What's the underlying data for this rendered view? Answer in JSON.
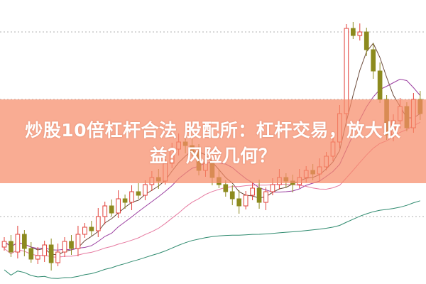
{
  "article": {
    "title": "炒股10倍杠杆合法 股配所：杠杆交易，放大收益？风险几何？"
  },
  "chart_data": {
    "type": "candlestick",
    "closes": [
      60,
      45,
      70,
      50,
      35,
      40,
      55,
      30,
      45,
      60,
      50,
      70,
      80,
      75,
      95,
      110,
      100,
      120,
      115,
      130,
      125,
      140,
      150,
      145,
      170,
      190,
      200,
      195,
      185,
      160,
      170,
      150,
      140,
      130,
      120,
      110,
      125,
      135,
      115,
      130,
      140,
      150,
      145,
      140,
      150,
      160,
      155,
      165,
      180,
      200,
      240,
      360,
      350,
      355,
      330,
      300,
      260,
      210,
      230,
      250,
      220,
      260,
      240
    ],
    "moving_averages": [
      5,
      10,
      20,
      60
    ],
    "grid": "dotted horizontal",
    "colors": {
      "up": "#e2403a",
      "down": "#8c8a1e",
      "ma5": "#6b4a3a",
      "ma10": "#9b3fa0",
      "ma20": "#e67aa0",
      "ma60": "#2e8a6e",
      "banner": "#f78c69"
    }
  }
}
